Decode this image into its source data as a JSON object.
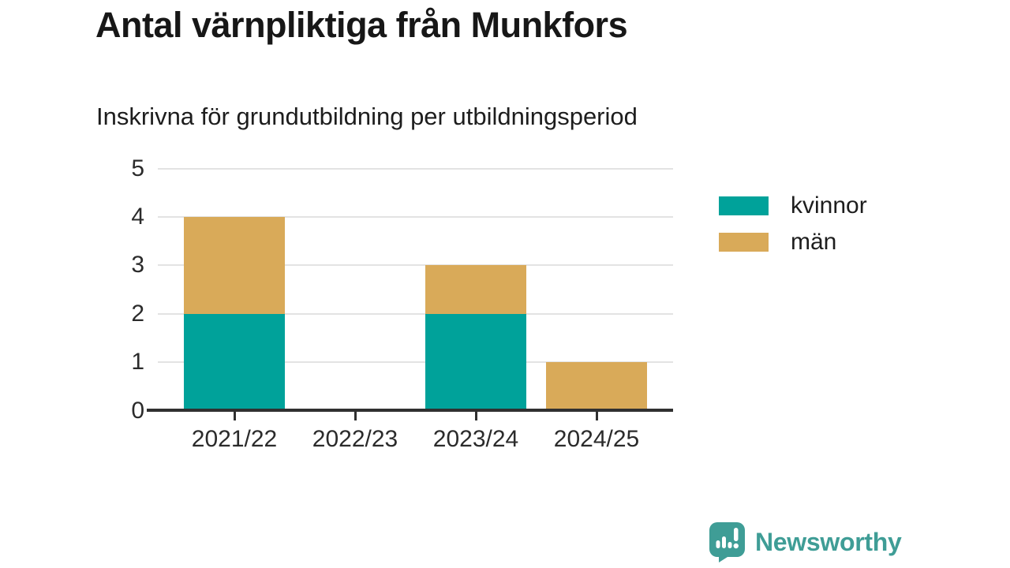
{
  "chart_data": {
    "type": "bar",
    "stacked": true,
    "title": "Antal värnpliktiga från Munkfors",
    "subtitle": "Inskrivna för grundutbildning per utbildningsperiod",
    "categories": [
      "2021/22",
      "2022/23",
      "2023/24",
      "2024/25"
    ],
    "series": [
      {
        "name": "kvinnor",
        "color": "#00a29a",
        "values": [
          2,
          0,
          2,
          0
        ]
      },
      {
        "name": "män",
        "color": "#d9aa59",
        "values": [
          2,
          0,
          1,
          1
        ]
      }
    ],
    "totals": [
      4,
      0,
      3,
      1
    ],
    "ylim": [
      0,
      5
    ],
    "yticks": [
      0,
      1,
      2,
      3,
      4,
      5
    ],
    "grid": "horizontal",
    "legend_position": "right"
  },
  "attribution": {
    "brand": "Newsworthy",
    "brand_color": "#3f9d96"
  }
}
